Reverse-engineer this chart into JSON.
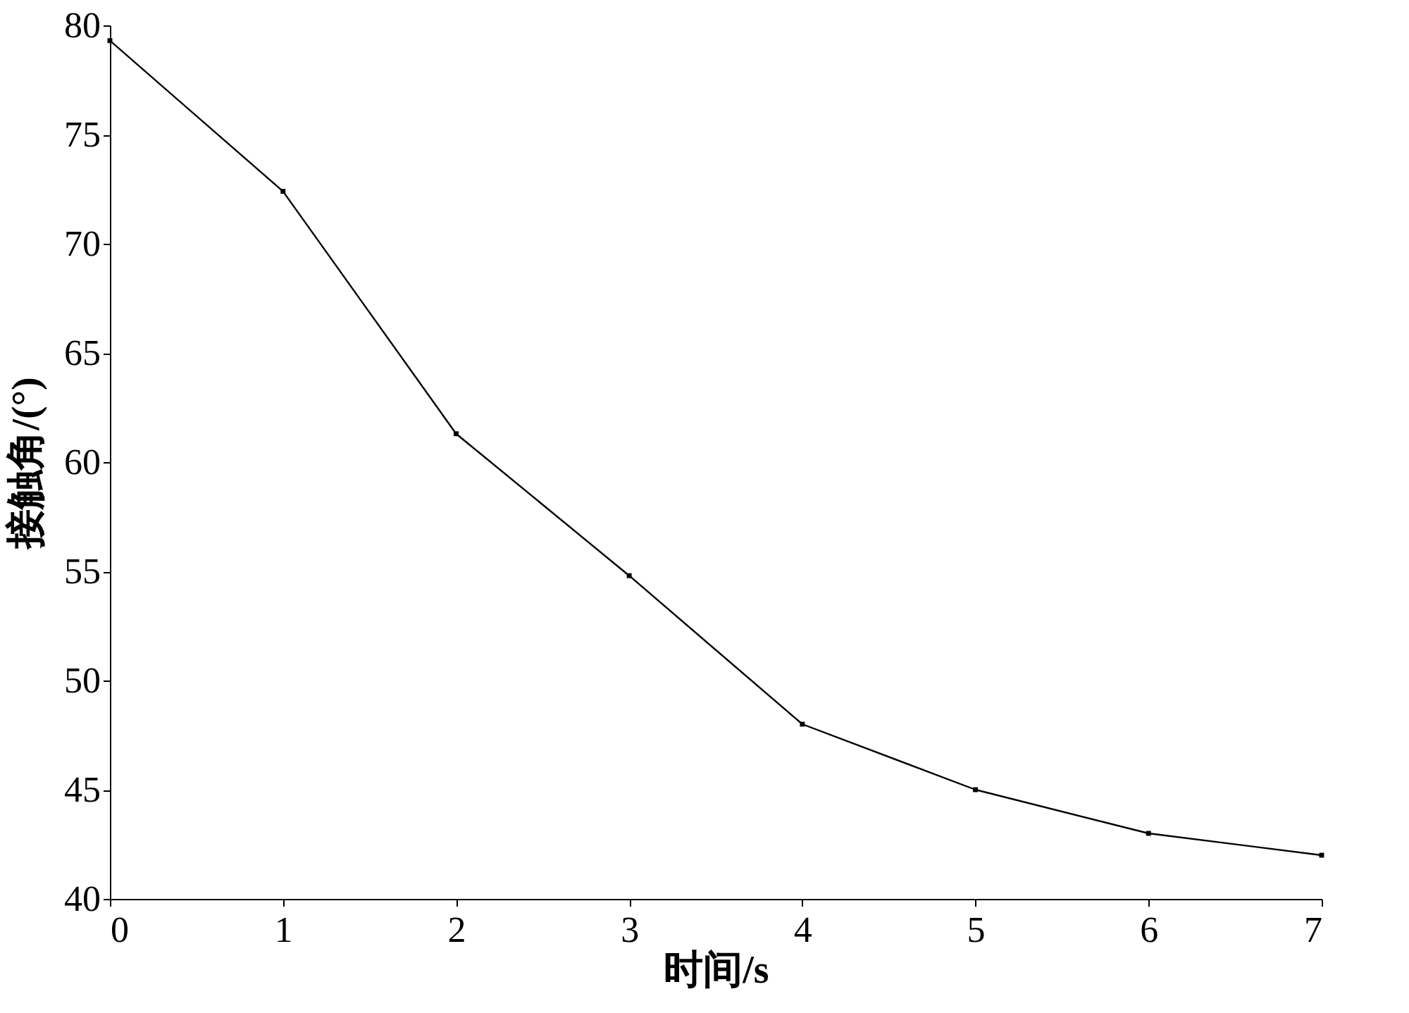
{
  "chart_data": {
    "type": "line",
    "xlabel": "时间/s",
    "ylabel": "接触角/(°)",
    "x": [
      0,
      1,
      2,
      3,
      4,
      5,
      6,
      7
    ],
    "series": [
      {
        "color": "#000000",
        "values": [
          79.3,
          72.4,
          61.3,
          54.8,
          48.0,
          45.0,
          43.0,
          42.0
        ]
      }
    ],
    "xlim": [
      0,
      7
    ],
    "xticks": [
      0,
      1,
      2,
      3,
      4,
      5,
      6,
      7
    ],
    "ylim": [
      40,
      80
    ],
    "yticks": [
      40,
      45,
      50,
      55,
      60,
      65,
      70,
      75,
      80
    ],
    "grid": false,
    "marker": "square",
    "line_style": "solid"
  }
}
